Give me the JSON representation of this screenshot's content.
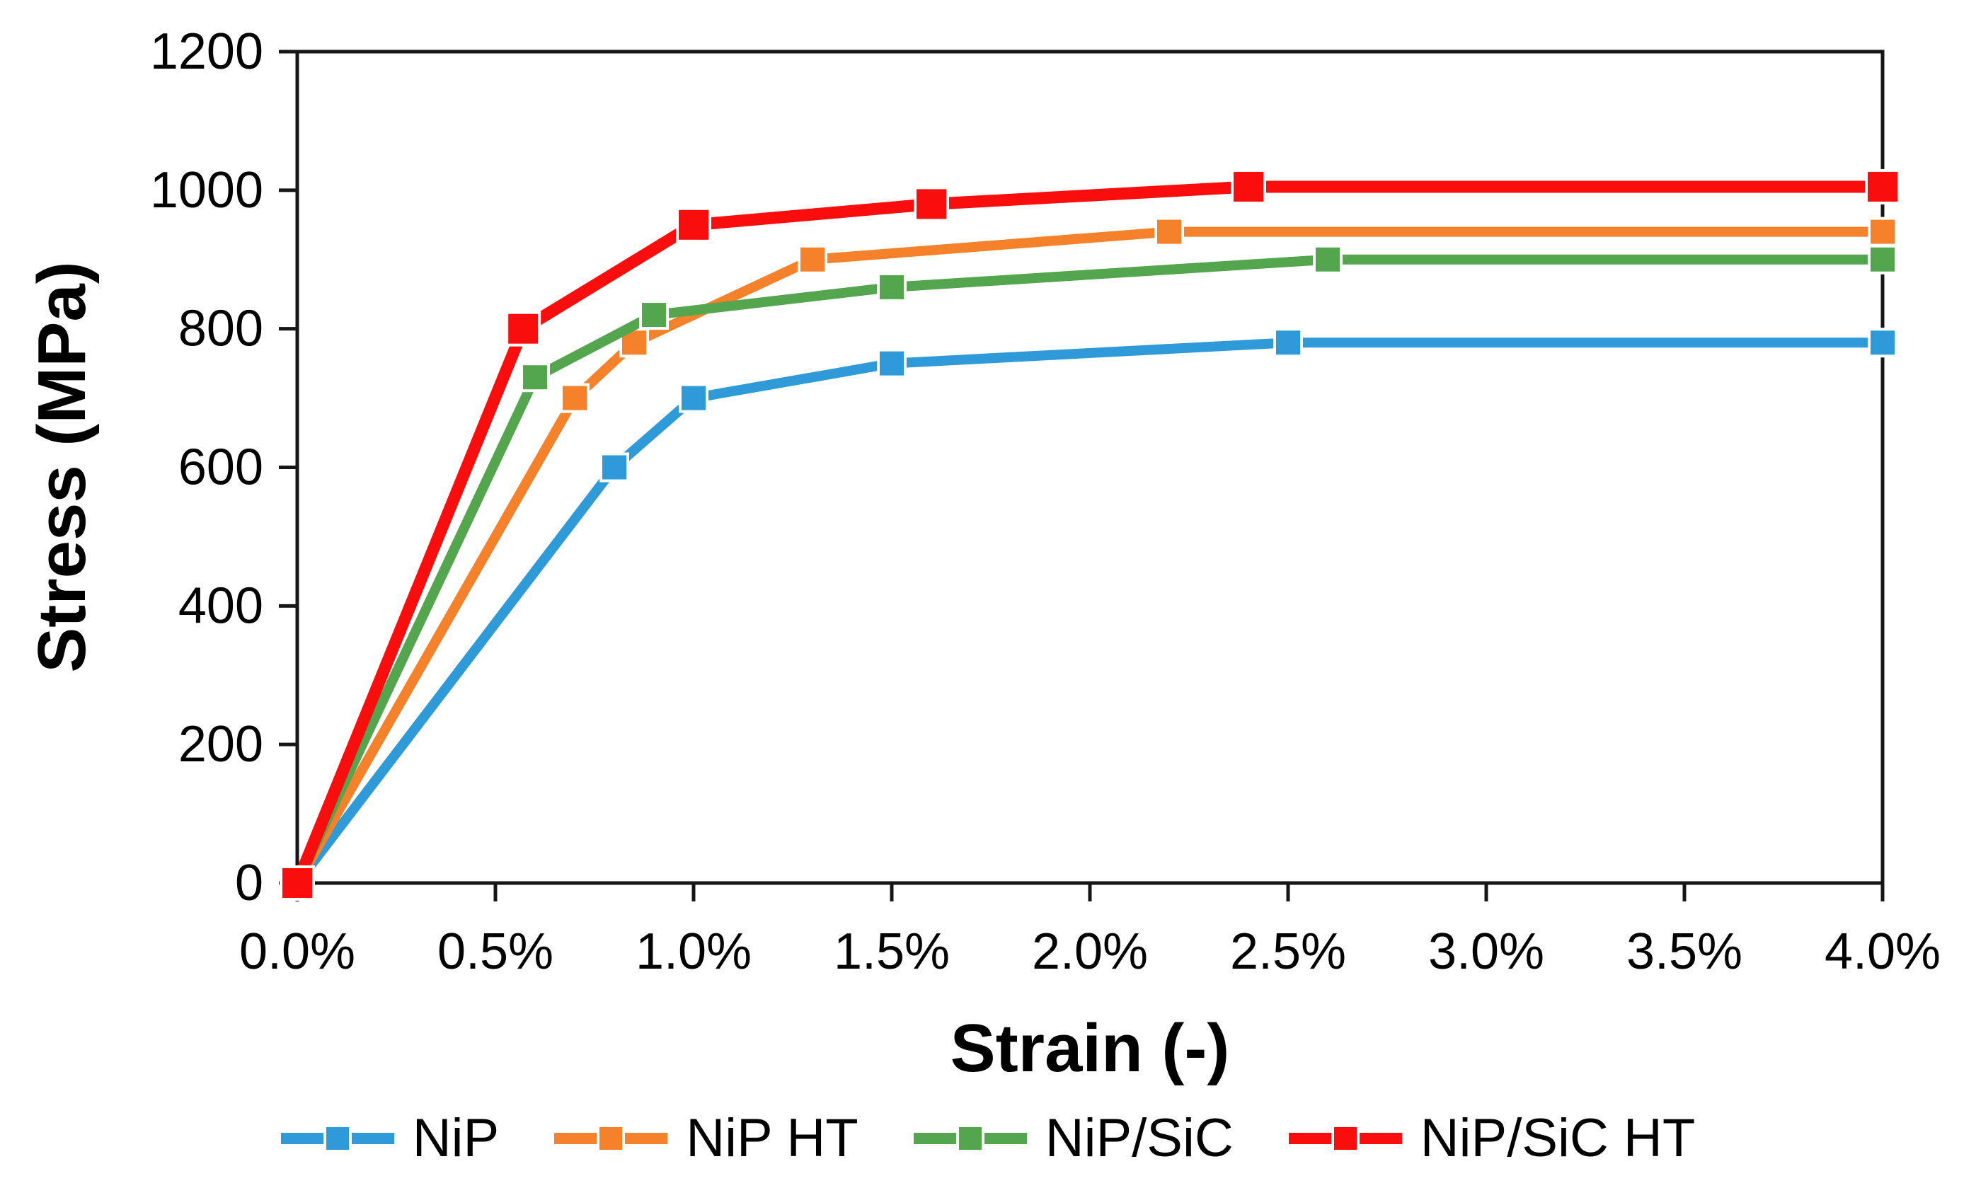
{
  "chart_data": {
    "type": "line",
    "title": "",
    "xlabel": "Strain (-)",
    "ylabel": "Stress (MPa)",
    "x_tick_labels": [
      "0.0%",
      "0.5%",
      "1.0%",
      "1.5%",
      "2.0%",
      "2.5%",
      "3.0%",
      "3.5%",
      "4.0%"
    ],
    "x_tick_values": [
      0,
      0.5,
      1.0,
      1.5,
      2.0,
      2.5,
      3.0,
      3.5,
      4.0
    ],
    "y_ticks": [
      0,
      200,
      400,
      600,
      800,
      1000,
      1200
    ],
    "xlim_percent": [
      0,
      4
    ],
    "ylim": [
      0,
      1200
    ],
    "grid": false,
    "legend_position": "bottom",
    "marker": "square",
    "axis_color": "#161616",
    "series": [
      {
        "name": "NiP",
        "color": "#2E9AD8",
        "points": [
          [
            0.0,
            0
          ],
          [
            0.8,
            600
          ],
          [
            1.0,
            700
          ],
          [
            1.5,
            750
          ],
          [
            2.5,
            780
          ],
          [
            4.0,
            780
          ]
        ]
      },
      {
        "name": "NiP HT",
        "color": "#F5822A",
        "points": [
          [
            0.0,
            0
          ],
          [
            0.7,
            700
          ],
          [
            0.85,
            780
          ],
          [
            1.3,
            900
          ],
          [
            2.2,
            940
          ],
          [
            4.0,
            940
          ]
        ]
      },
      {
        "name": "NiP/SiC",
        "color": "#54A64E",
        "points": [
          [
            0.0,
            0
          ],
          [
            0.6,
            730
          ],
          [
            0.9,
            820
          ],
          [
            1.5,
            860
          ],
          [
            2.6,
            900
          ],
          [
            4.0,
            900
          ]
        ]
      },
      {
        "name": "NiP/SiC HT",
        "color": "#FA0D0D",
        "points": [
          [
            0.0,
            0
          ],
          [
            0.57,
            800
          ],
          [
            1.0,
            950
          ],
          [
            1.6,
            980
          ],
          [
            2.4,
            1005
          ],
          [
            4.0,
            1005
          ]
        ]
      }
    ]
  }
}
